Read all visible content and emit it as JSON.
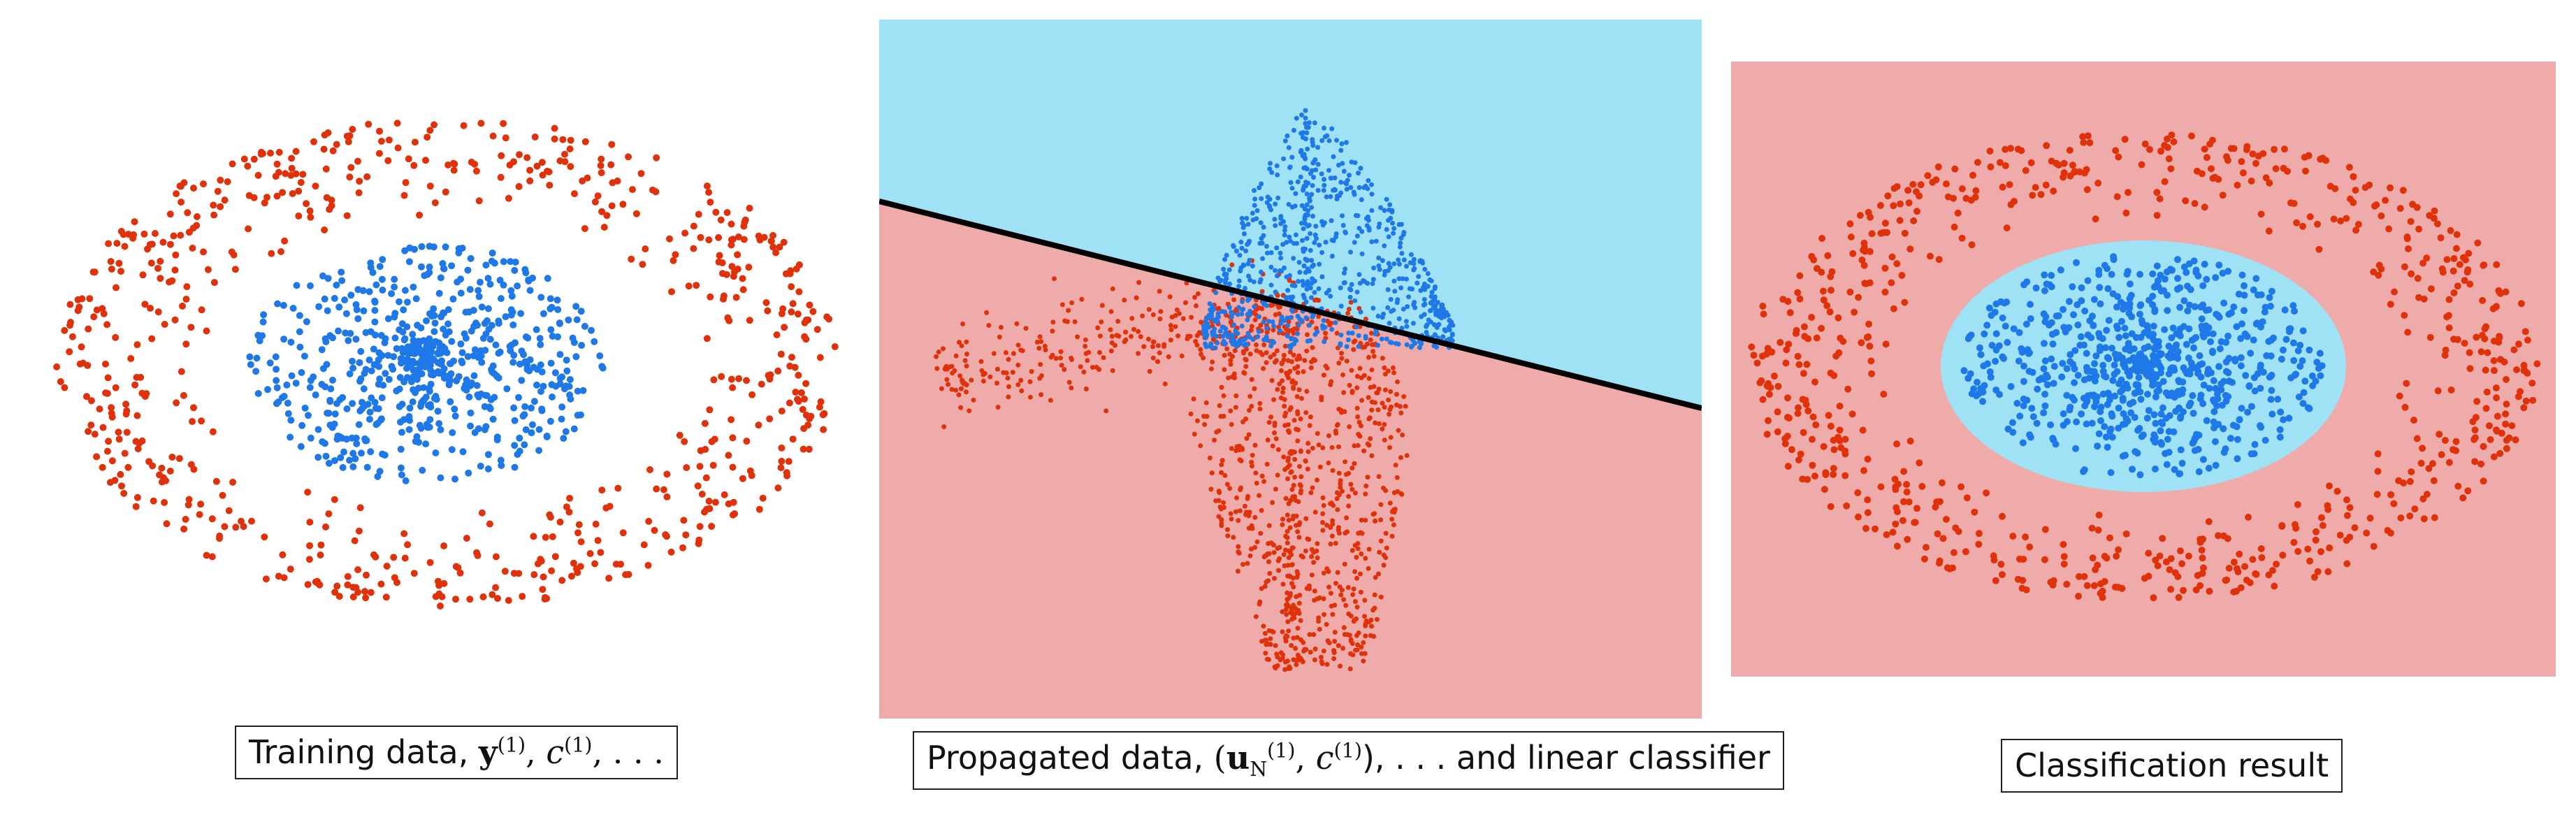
{
  "colors": {
    "outer_class": "#e0320a",
    "inner_class": "#1f78e8",
    "region_outer": "#eeabaa",
    "region_inner": "#9fe2f5",
    "boundary": "#000000"
  },
  "panels": {
    "left": {
      "caption": {
        "text": "Training data,",
        "math": [
          "y",
          "(1)",
          "c",
          "(1)",
          ", . . ."
        ]
      }
    },
    "middle": {
      "caption": {
        "text": "Propagated data,",
        "math": [
          "u",
          "N",
          "(1)",
          "c",
          "(1)"
        ],
        "suffix": "), . . . and linear classifier"
      }
    },
    "right": {
      "caption": {
        "text": "Classification result"
      }
    }
  }
}
